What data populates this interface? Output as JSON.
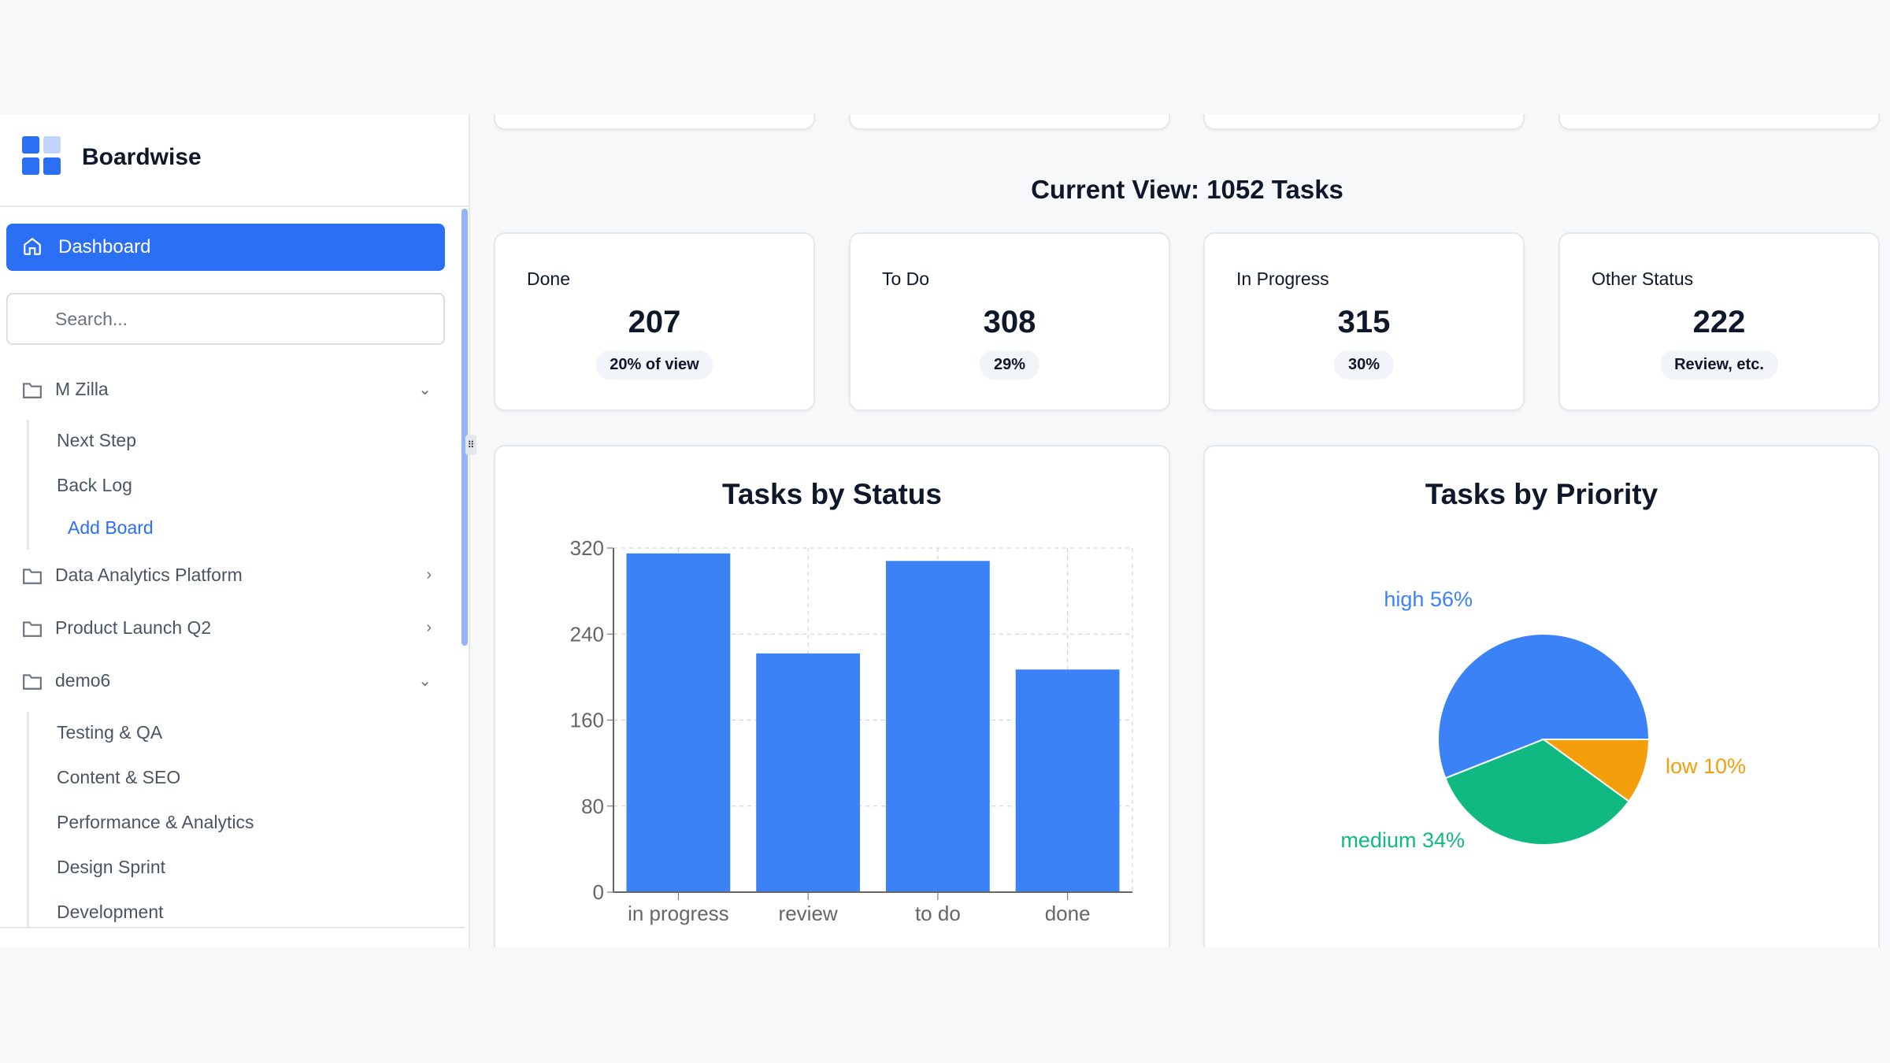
{
  "app": {
    "name": "Boardwise"
  },
  "sidebar": {
    "dashboard_label": "Dashboard",
    "search_placeholder": "Search...",
    "groups": [
      {
        "label": "M Zilla",
        "expanded": true,
        "items": [
          "Next Step",
          "Back Log"
        ],
        "add_label": "Add Board"
      },
      {
        "label": "Data Analytics Platform",
        "expanded": false
      },
      {
        "label": "Product Launch Q2",
        "expanded": false
      },
      {
        "label": "demo6",
        "expanded": true,
        "items": [
          "Testing & QA",
          "Content & SEO",
          "Performance & Analytics",
          "Design Sprint",
          "Development"
        ]
      }
    ]
  },
  "main": {
    "view_title": "Current View: 1052 Tasks",
    "stats": [
      {
        "label": "Done",
        "value": "207",
        "pill": "20% of view"
      },
      {
        "label": "To Do",
        "value": "308",
        "pill": "29%"
      },
      {
        "label": "In Progress",
        "value": "315",
        "pill": "30%"
      },
      {
        "label": "Other Status",
        "value": "222",
        "pill": "Review, etc."
      }
    ]
  },
  "chart_data": [
    {
      "type": "bar",
      "title": "Tasks by Status",
      "categories": [
        "in progress",
        "review",
        "to do",
        "done"
      ],
      "values": [
        315,
        222,
        308,
        207
      ],
      "yticks": [
        "0",
        "80",
        "160",
        "240",
        "320"
      ],
      "ylim": [
        0,
        320
      ],
      "grid": true,
      "color": "#3b82f6"
    },
    {
      "type": "pie",
      "title": "Tasks by Priority",
      "slices": [
        {
          "label": "high 56%",
          "value": 56,
          "color": "#3b82f6"
        },
        {
          "label": "low 10%",
          "value": 10,
          "color": "#f59e0b"
        },
        {
          "label": "medium 34%",
          "value": 34,
          "color": "#10b981"
        }
      ]
    }
  ]
}
